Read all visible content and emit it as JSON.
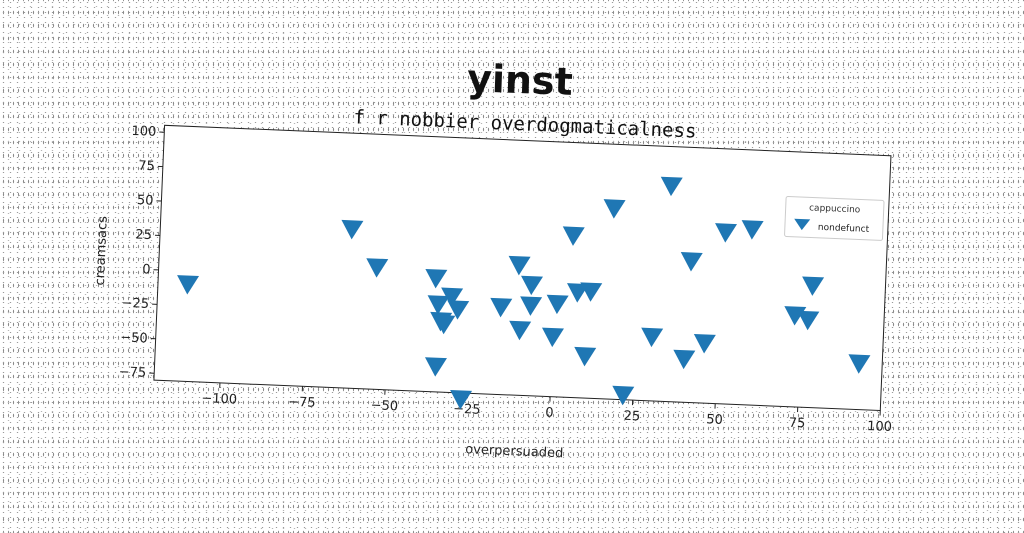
{
  "title": "yinst",
  "chart_data": {
    "type": "scatter",
    "subtitle": "f r nobbier overdogmaticalness",
    "xlabel": "overpersuaded",
    "ylabel": "creamsacs",
    "xlim": [
      -120,
      100
    ],
    "ylim": [
      -80,
      105
    ],
    "xticks": [
      -100,
      -75,
      -50,
      -25,
      0,
      25,
      50,
      75,
      100
    ],
    "yticks": [
      -75,
      -50,
      -25,
      0,
      25,
      50,
      75,
      100
    ],
    "grid": false,
    "legend": {
      "title": "cappuccino",
      "placement": "top-right"
    },
    "series": [
      {
        "name": "nondefunct",
        "marker": "triangle-down",
        "color": "#1f77b4",
        "points": [
          [
            -111,
            -9
          ],
          [
            -62,
            36
          ],
          [
            -54,
            9
          ],
          [
            -36,
            3
          ],
          [
            -35,
            -16
          ],
          [
            -34,
            -28
          ],
          [
            -33,
            -30
          ],
          [
            -31,
            -10
          ],
          [
            -29,
            -19
          ],
          [
            -35,
            -61
          ],
          [
            -27,
            -84
          ],
          [
            -16,
            -16
          ],
          [
            -10,
            -32
          ],
          [
            -11,
            15
          ],
          [
            -7,
            1
          ],
          [
            -7,
            -14
          ],
          [
            0,
            -36
          ],
          [
            1,
            -12
          ],
          [
            5,
            38
          ],
          [
            7,
            -3
          ],
          [
            10,
            -49
          ],
          [
            11,
            -2
          ],
          [
            17,
            59
          ],
          [
            22,
            -76
          ],
          [
            30,
            -33
          ],
          [
            34,
            77
          ],
          [
            40,
            -48
          ],
          [
            41,
            23
          ],
          [
            46,
            -36
          ],
          [
            51,
            45
          ],
          [
            59,
            48
          ],
          [
            73,
            -13
          ],
          [
            77,
            -16
          ],
          [
            78,
            9
          ],
          [
            93,
            -46
          ]
        ]
      }
    ]
  }
}
